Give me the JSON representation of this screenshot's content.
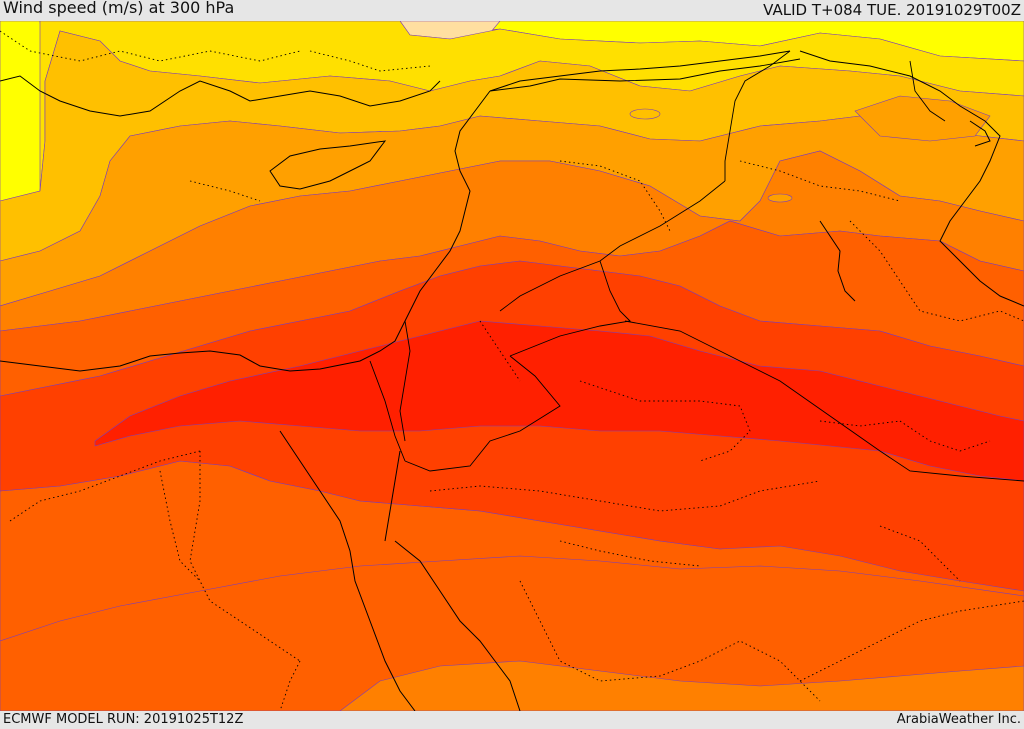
{
  "header": {
    "title": "Wind speed (m/s) at 300 hPa",
    "valid_time": "VALID T+084 TUE. 20191029T00Z"
  },
  "footer": {
    "model_run": "ECMWF MODEL RUN: 20191025T12Z",
    "credit": "ArabiaWeather Inc."
  },
  "colors": {
    "band_1": "#ffff00",
    "band_2": "#ffe000",
    "band_3": "#ffc000",
    "band_4": "#ffa000",
    "band_5": "#ff8000",
    "band_6": "#ff6000",
    "band_7": "#ff4000",
    "band_8": "#ff2000",
    "band_9": "#ffdfa0",
    "contour_line": "#7a3dbb",
    "border_line": "#000000"
  }
}
